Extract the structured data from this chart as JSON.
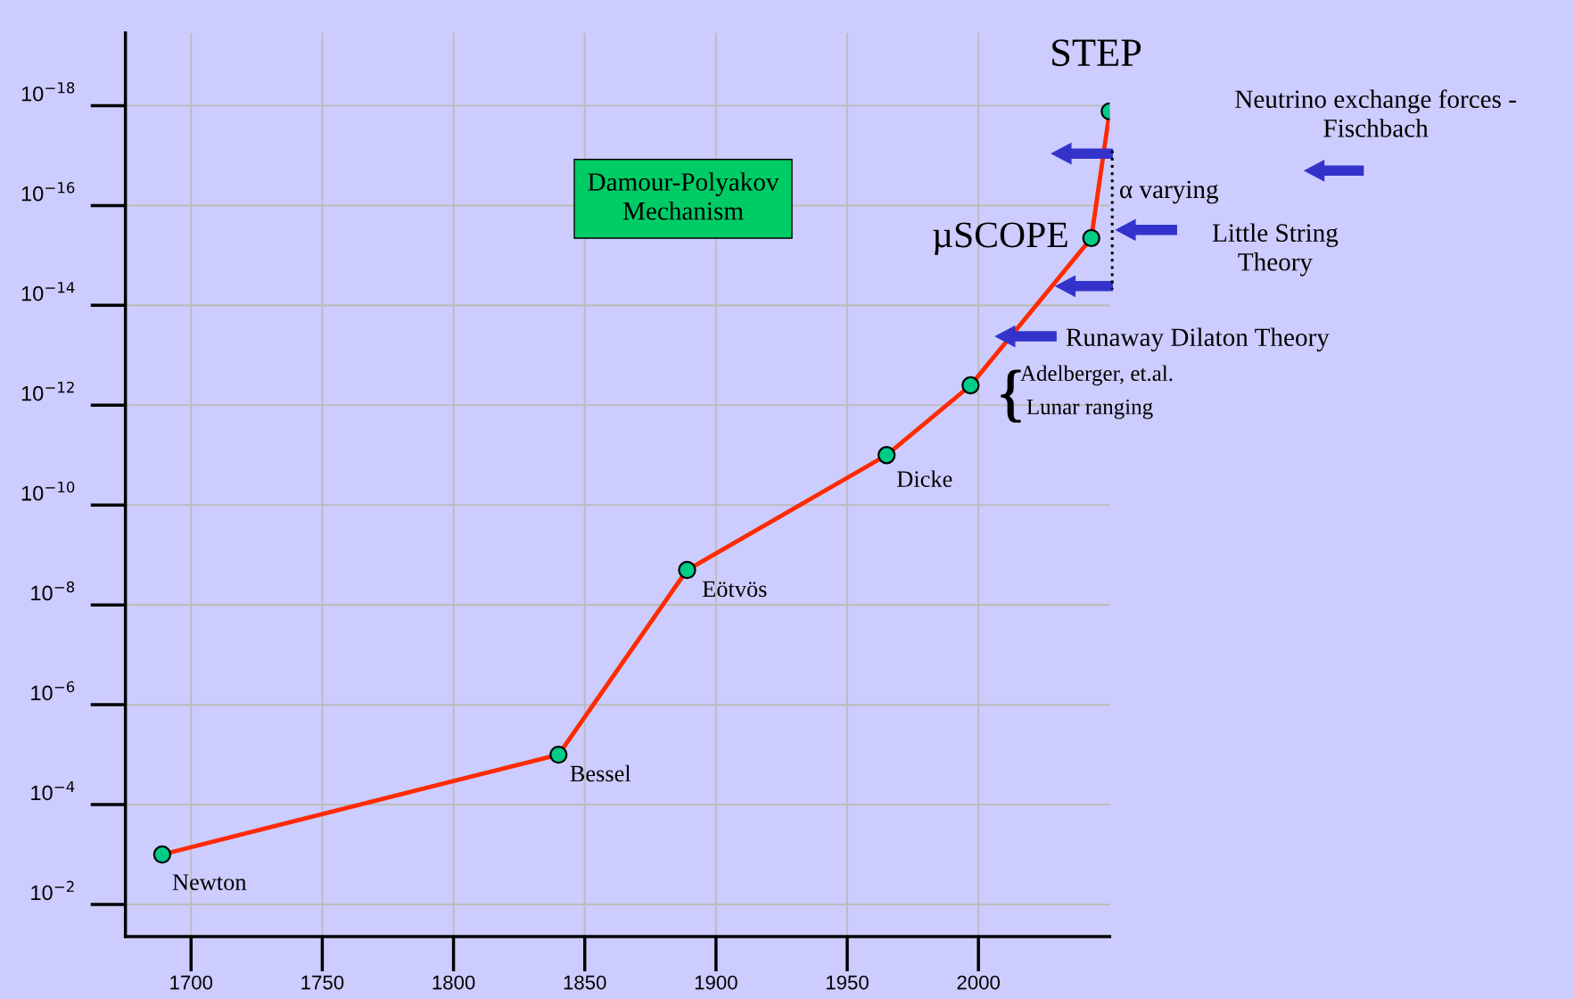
{
  "chart_data": {
    "type": "line",
    "x": [
      1689,
      1840,
      1889,
      1965,
      1997,
      2043,
      2050
    ],
    "series": [
      {
        "color": "#ff2a00",
        "colors": [
          "#00cc88",
          "#00cc88",
          "#00cc88",
          "#00cc88",
          "#00cc88",
          "#00cc88",
          "#00cc88"
        ],
        "values": [
          0.001,
          1e-05,
          2e-09,
          1e-11,
          4e-13,
          4.5e-16,
          1.3e-18
        ]
      }
    ],
    "log": "y",
    "xlim": [
      1675,
      2050
    ],
    "xticks": [
      1700,
      1750,
      1800,
      1850,
      1900,
      1950,
      2000
    ],
    "ylim": [
      0.044,
      3.5e-20
    ],
    "yticks": [
      {
        "value": 0.01,
        "label": "10$^{−2}$"
      },
      {
        "value": 0.0001,
        "label": "10$^{−4}$"
      },
      {
        "value": 1e-06,
        "label": "10$^{−6}$"
      },
      {
        "value": 1e-08,
        "label": "10$^{−8}$"
      },
      {
        "value": 1e-10,
        "label": "10$^{−10}$"
      },
      {
        "value": 1e-12,
        "label": "10$^{−12}$"
      },
      {
        "value": 1e-14,
        "label": "10$^{−14}$"
      },
      {
        "value": 1e-16,
        "label": "10$^{−16}$"
      },
      {
        "value": 1e-18,
        "label": "10$^{−18}$"
      }
    ],
    "grid": true,
    "marker": "circle",
    "line_style": "solid",
    "annotations": [
      {
        "text": "STEP",
        "x": 2050,
        "y": 1.3e-18
      },
      {
        "text": "µSCOPE",
        "x": 2043,
        "y": 4.5e-16
      },
      {
        "text": "Newton",
        "x": 1689,
        "y": 0.001
      },
      {
        "text": "Bessel",
        "x": 1840,
        "y": 1e-05
      },
      {
        "text": "Eötvös",
        "x": 1889,
        "y": 2e-09
      },
      {
        "text": "Dicke",
        "x": 1965,
        "y": 1e-11
      },
      {
        "text": "Adelberger, et.al.",
        "x": 1997,
        "y": 4e-13
      },
      {
        "text": "Lunar ranging",
        "x": 1997,
        "y": 4e-13
      },
      "Damour-Polyakov\nMechanism",
      "Neutrino exchange forces -\nFischbach",
      "α varying",
      "Little String\nTheory",
      "Runaway Dilaton Theory"
    ]
  }
}
